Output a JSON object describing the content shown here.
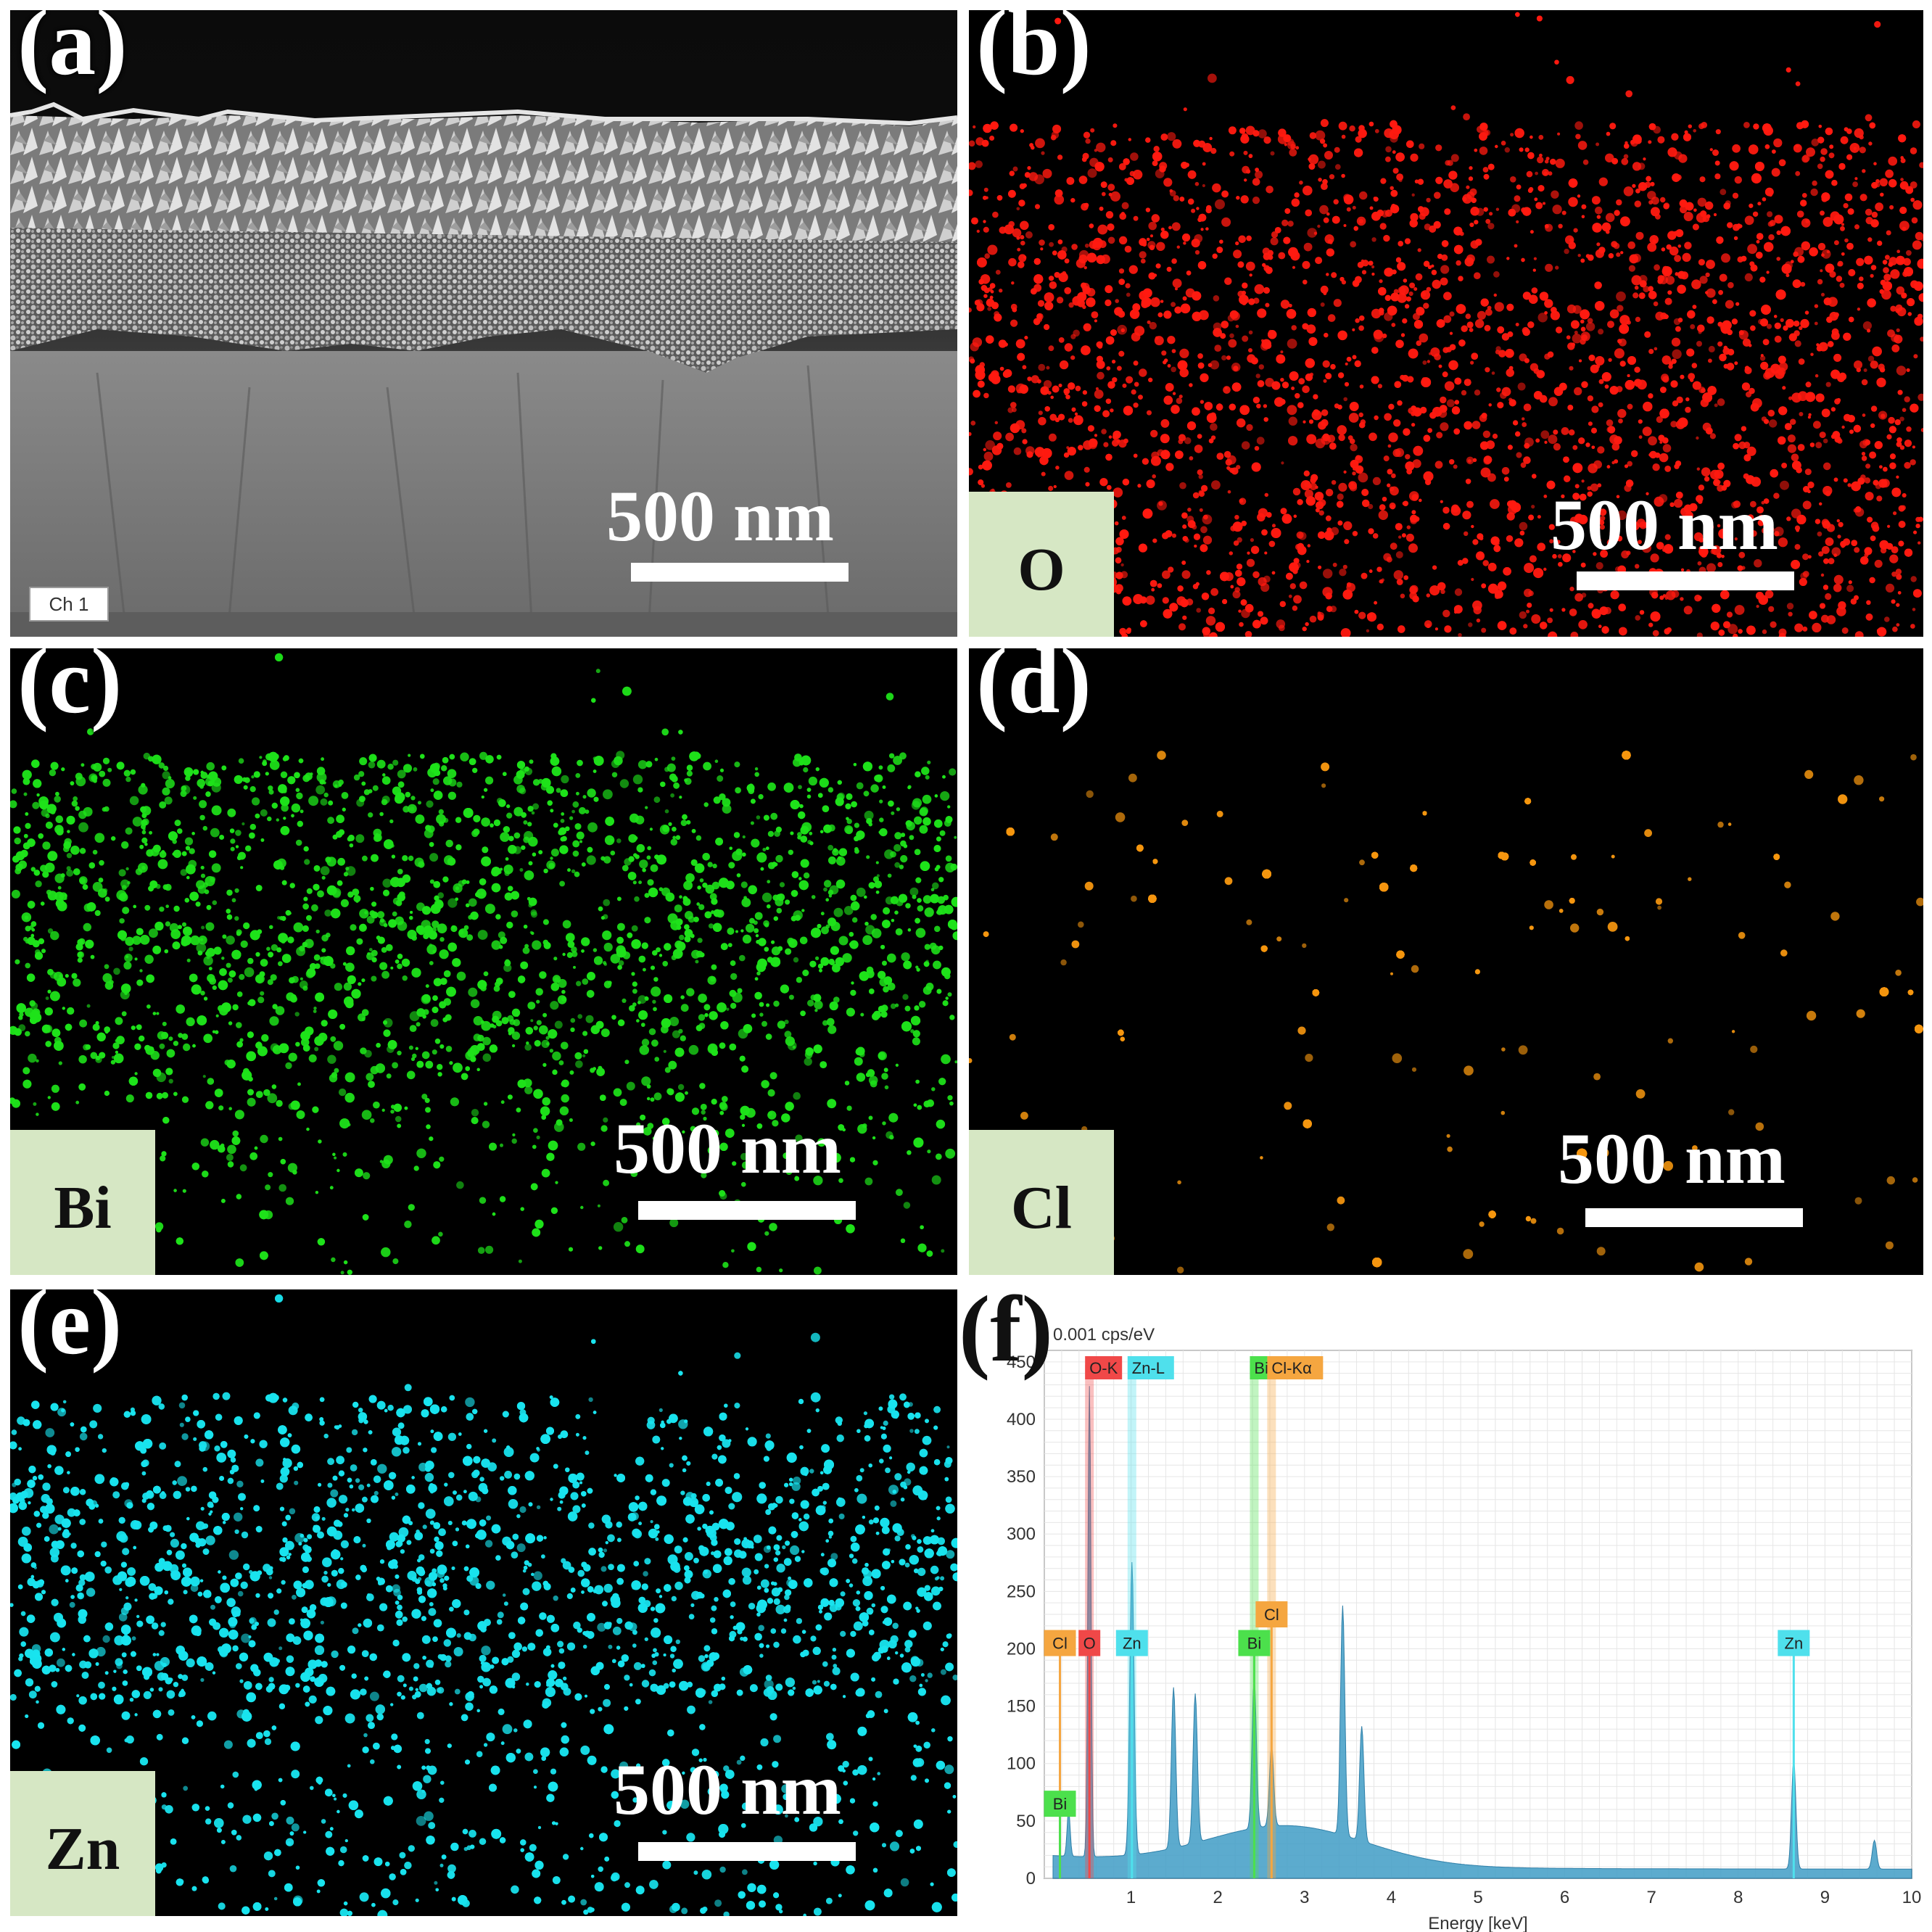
{
  "panels": {
    "a": {
      "label": "(a)",
      "scale": "500 nm",
      "channel": "Ch 1"
    },
    "b": {
      "label": "(b)",
      "scale": "500 nm",
      "element": "O",
      "color": "#ff1a10"
    },
    "c": {
      "label": "(c)",
      "scale": "500 nm",
      "element": "Bi",
      "color": "#1ee21a"
    },
    "d": {
      "label": "(d)",
      "scale": "500 nm",
      "element": "Cl",
      "color": "#f5960f"
    },
    "e": {
      "label": "(e)",
      "scale": "500 nm",
      "element": "Zn",
      "color": "#19e3ee"
    },
    "f": {
      "label": "(f)"
    }
  },
  "chart_data": {
    "type": "area",
    "ylabel": "0.001 cps/eV",
    "xlabel": "Energy [keV]",
    "xlim": [
      0,
      10
    ],
    "ylim": [
      0,
      460
    ],
    "xticks": [
      1,
      2,
      3,
      4,
      5,
      6,
      7,
      8,
      9,
      10
    ],
    "yticks": [
      0,
      50,
      100,
      150,
      200,
      250,
      300,
      350,
      400,
      450
    ],
    "grid": true,
    "series_color": "#3f9cc6",
    "peaks": [
      {
        "x": 0.28,
        "y": 40
      },
      {
        "x": 0.52,
        "y": 410
      },
      {
        "x": 1.01,
        "y": 255
      },
      {
        "x": 1.49,
        "y": 140
      },
      {
        "x": 1.74,
        "y": 130
      },
      {
        "x": 2.42,
        "y": 130
      },
      {
        "x": 2.62,
        "y": 70
      },
      {
        "x": 3.44,
        "y": 200
      },
      {
        "x": 3.66,
        "y": 100
      },
      {
        "x": 8.64,
        "y": 95
      },
      {
        "x": 9.57,
        "y": 25
      }
    ],
    "top_markers": [
      {
        "text": "O-K",
        "x": 0.52,
        "color": "#f04848"
      },
      {
        "text": "Zn-L",
        "x": 1.01,
        "color": "#4fe0ec"
      },
      {
        "text": "Bi",
        "x": 2.42,
        "color": "#4ce04c"
      },
      {
        "text": "Cl-Kα",
        "x": 2.62,
        "color": "#f5a640"
      }
    ],
    "markers": [
      {
        "text": "Cl",
        "x": 0.18,
        "y": 205,
        "line_x": 0.18,
        "color": "#f5a640"
      },
      {
        "text": "O",
        "x": 0.52,
        "y": 205,
        "line_x": 0.52,
        "color": "#f04848"
      },
      {
        "text": "Zn",
        "x": 1.01,
        "y": 205,
        "line_x": 1.01,
        "color": "#4fe0ec"
      },
      {
        "text": "Bi",
        "x": 2.42,
        "y": 205,
        "line_x": 2.42,
        "color": "#4ce04c"
      },
      {
        "text": "Cl",
        "x": 2.62,
        "y": 230,
        "line_x": 2.62,
        "color": "#f5a640"
      },
      {
        "text": "Zn",
        "x": 8.64,
        "y": 205,
        "line_x": 8.64,
        "color": "#4fe0ec"
      },
      {
        "text": "Bi",
        "x": 0.18,
        "y": 65,
        "line_x": 0.18,
        "color": "#4ce04c"
      }
    ]
  }
}
